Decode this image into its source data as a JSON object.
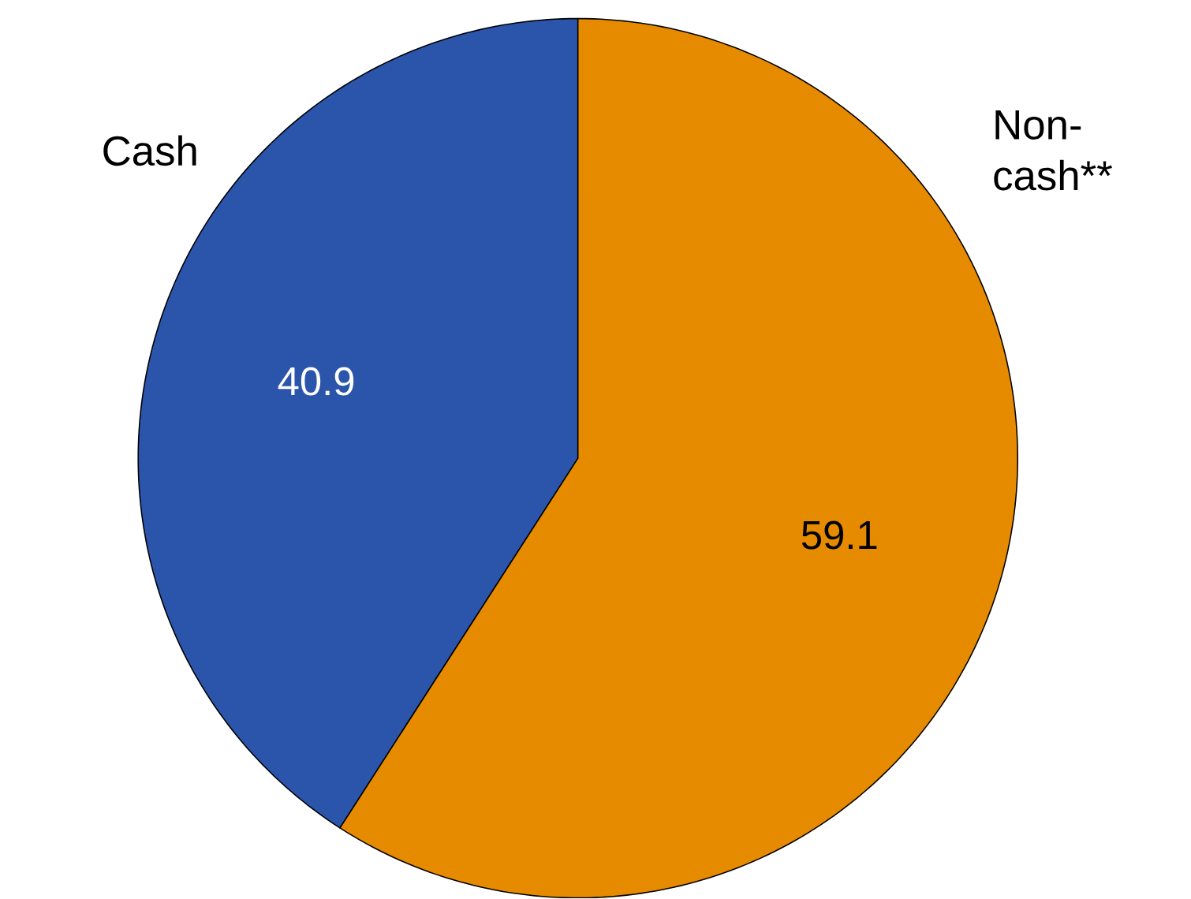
{
  "chart_data": {
    "type": "pie",
    "categories": [
      "Cash",
      "Non-cash**"
    ],
    "values": [
      40.9,
      59.1
    ],
    "colors": [
      "#2b55ab",
      "#e68a00"
    ],
    "data_labels": true
  }
}
